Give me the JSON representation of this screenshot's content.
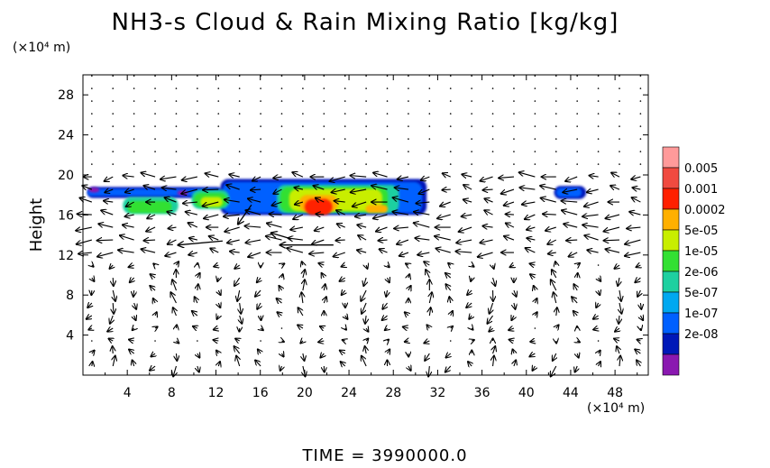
{
  "title": "NH3-s Cloud & Rain Mixing Ratio [kg/kg]",
  "y_unit": "(×10⁴ m)",
  "x_unit": "(×10⁴ m)",
  "time_label": "TIME  =  3990000.0",
  "chart_data": {
    "type": "heatmap",
    "title": "NH3-s Cloud & Rain Mixing Ratio [kg/kg]",
    "xlabel": "",
    "ylabel": "Height",
    "x_unit": "(×10⁴ m)",
    "y_unit": "(×10⁴ m)",
    "xlim": [
      0,
      51
    ],
    "ylim": [
      0,
      30
    ],
    "x_ticks": [
      4,
      8,
      12,
      16,
      20,
      24,
      28,
      32,
      36,
      40,
      44,
      48
    ],
    "y_ticks": [
      4,
      8,
      12,
      16,
      20,
      24,
      28
    ],
    "colorbar": {
      "levels": [
        "0.005",
        "0.001",
        "0.0002",
        "5e-05",
        "1e-05",
        "2e-06",
        "5e-07",
        "1e-07",
        "2e-08"
      ],
      "colors": [
        "#ff9a9a",
        "#f04a40",
        "#ff2000",
        "#ffb000",
        "#c8ee00",
        "#33e033",
        "#1ed0a0",
        "#00a8f0",
        "#0060ff",
        "#0018b8",
        "#8a18b0"
      ]
    },
    "cloud_regions": [
      {
        "x": [
          0,
          31
        ],
        "y": [
          15.8,
          19.8
        ],
        "peak": "0.001"
      },
      {
        "x": [
          42.5,
          45.5
        ],
        "y": [
          17.5,
          19.0
        ],
        "peak": "1e-07"
      }
    ],
    "wind_field": "vector arrows on grid",
    "time": "3990000.0"
  }
}
